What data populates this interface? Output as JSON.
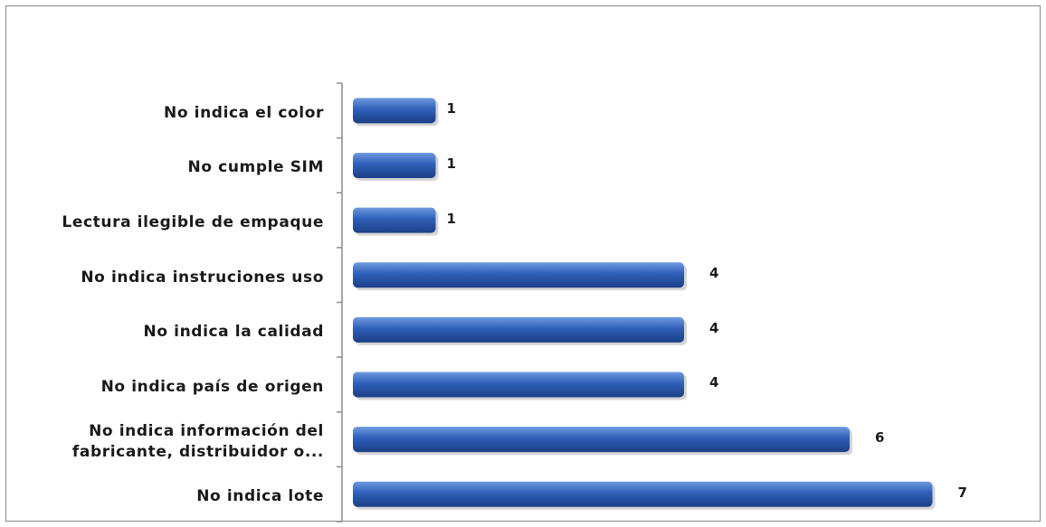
{
  "chart_data": {
    "type": "bar",
    "orientation": "horizontal",
    "categories": [
      "No indica el color",
      "No cumple SIM",
      "Lectura ilegible de empaque",
      "No indica instruciones uso",
      "No indica la calidad",
      "No indica país de origen",
      "No indica información del fabricante, distribuidor o...",
      "No indica lote"
    ],
    "category_lines": [
      [
        "No indica el color"
      ],
      [
        "No cumple SIM"
      ],
      [
        "Lectura ilegible de empaque"
      ],
      [
        "No indica instruciones uso"
      ],
      [
        "No indica la calidad"
      ],
      [
        "No indica país de origen"
      ],
      [
        "No indica información del",
        "fabricante, distribuidor o..."
      ],
      [
        "No indica lote"
      ]
    ],
    "values": [
      1,
      1,
      1,
      4,
      4,
      4,
      6,
      7
    ],
    "value_labels": [
      "1",
      "1",
      "1",
      "4",
      "4",
      "4",
      "6",
      "7"
    ],
    "title": "",
    "xlabel": "",
    "ylabel": "",
    "xlim": [
      0,
      7
    ],
    "grid": false,
    "legend": "none",
    "colors": {
      "bar_top": "#6f9be0",
      "bar_mid": "#2f5fb8",
      "bar_bottom": "#1c3f86",
      "axis": "#8c8c8c"
    }
  }
}
